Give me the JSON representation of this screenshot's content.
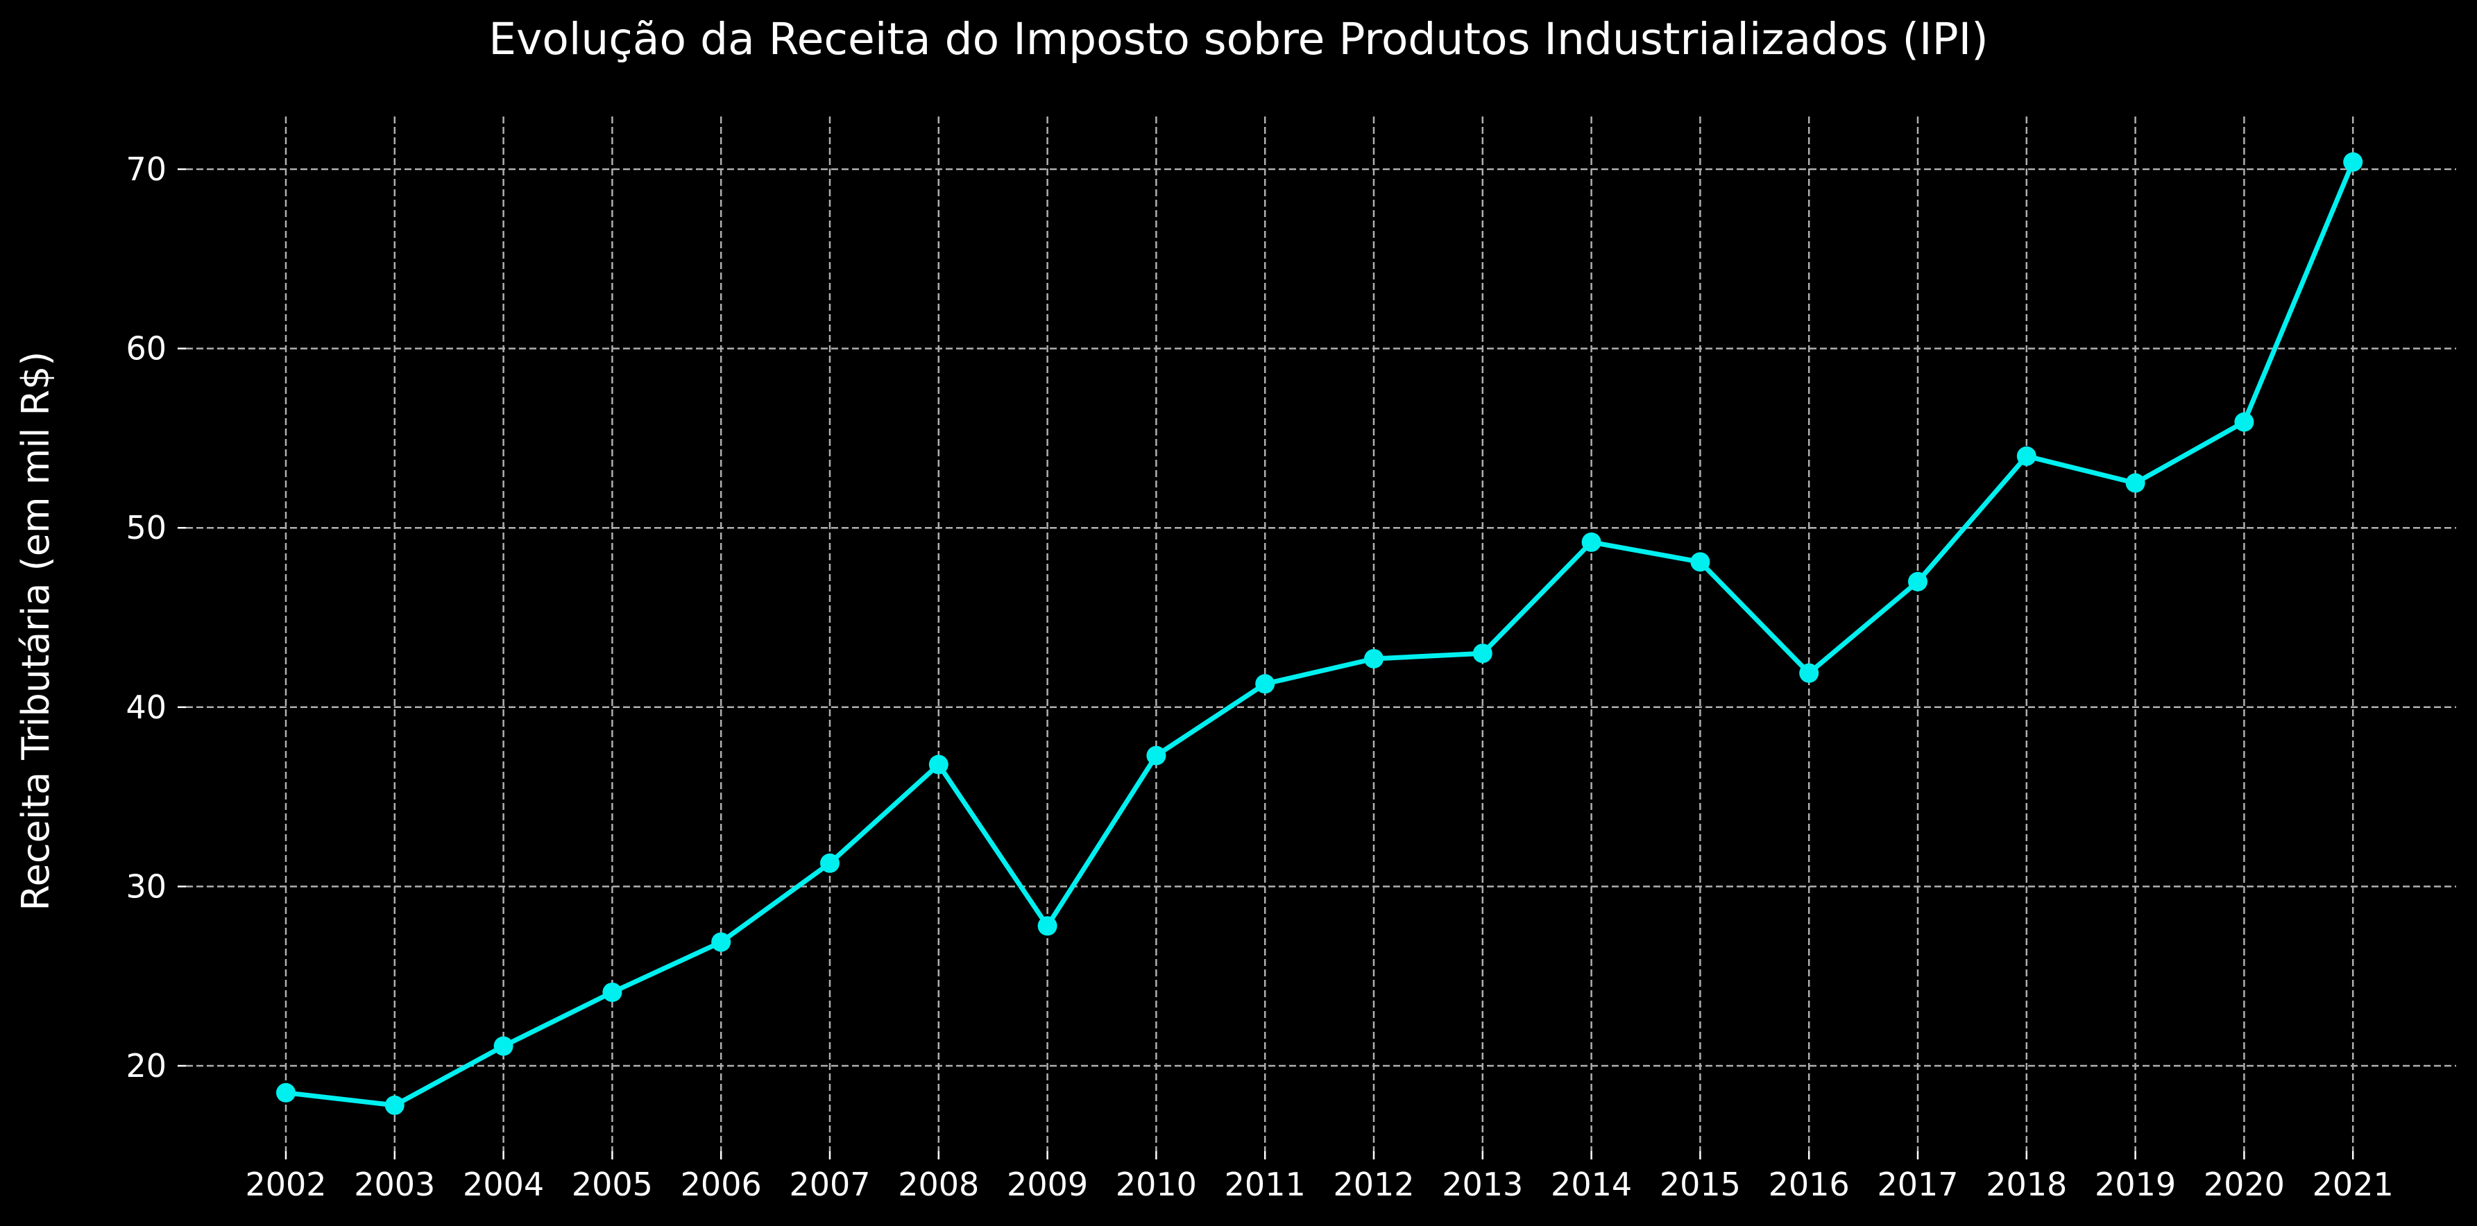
{
  "chart_data": {
    "type": "line",
    "title": "Evolução da Receita do Imposto sobre Produtos Industrializados (IPI)",
    "xlabel": "",
    "ylabel": "Receita Tributária (em mil R$)",
    "x": [
      "2002",
      "2003",
      "2004",
      "2005",
      "2006",
      "2007",
      "2008",
      "2009",
      "2010",
      "2011",
      "2012",
      "2013",
      "2014",
      "2015",
      "2016",
      "2017",
      "2018",
      "2019",
      "2020",
      "2021"
    ],
    "series": [
      {
        "values": [
          18.5,
          17.8,
          21.1,
          24.1,
          26.9,
          31.3,
          36.8,
          27.8,
          37.3,
          41.3,
          42.7,
          43.0,
          49.2,
          48.1,
          41.9,
          47.0,
          54.0,
          52.5,
          55.9,
          70.4
        ],
        "color": "#00f0f0"
      }
    ],
    "yticks": [
      20,
      30,
      40,
      50,
      60,
      70
    ],
    "ylim": [
      15.1,
      73.1
    ],
    "grid": true,
    "background": "#000000",
    "text_color": "#ffffff",
    "grid_color": "#b0b0b0"
  }
}
